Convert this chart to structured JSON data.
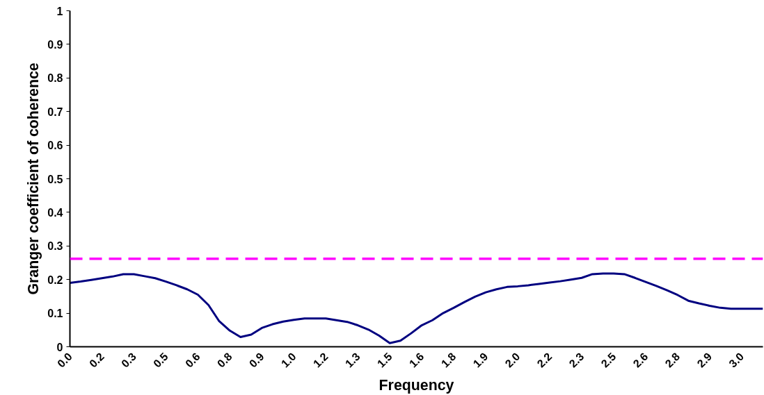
{
  "chart_data": {
    "type": "line",
    "xlabel": "Frequency",
    "ylabel": "Granger coefficient of coherence",
    "categories": [
      "0.0",
      null,
      null,
      "0.2",
      null,
      null,
      "0.3",
      null,
      null,
      "0.5",
      null,
      null,
      "0.6",
      null,
      null,
      "0.8",
      null,
      null,
      "0.9",
      null,
      null,
      "1.0",
      null,
      null,
      "1.2",
      null,
      null,
      "1.3",
      null,
      null,
      "1.5",
      null,
      null,
      "1.6",
      null,
      null,
      "1.8",
      null,
      null,
      "1.9",
      null,
      null,
      "2.0",
      null,
      null,
      "2.2",
      null,
      null,
      "2.3",
      null,
      null,
      "2.5",
      null,
      null,
      "2.6",
      null,
      null,
      "2.8",
      null,
      null,
      "2.9",
      null,
      null,
      "3.0",
      null,
      null
    ],
    "series": [
      {
        "color": "#000080",
        "values": [
          0.19,
          0.194,
          0.199,
          0.204,
          0.209,
          0.216,
          0.216,
          0.21,
          0.204,
          0.194,
          0.183,
          0.171,
          0.155,
          0.124,
          0.076,
          0.048,
          0.029,
          0.036,
          0.056,
          0.067,
          0.075,
          0.08,
          0.084,
          0.084,
          0.084,
          0.079,
          0.074,
          0.064,
          0.051,
          0.033,
          0.011,
          0.018,
          0.04,
          0.064,
          0.079,
          0.1,
          0.116,
          0.133,
          0.149,
          0.162,
          0.171,
          0.178,
          0.18,
          0.183,
          0.187,
          0.191,
          0.195,
          0.2,
          0.205,
          0.216,
          0.218,
          0.218,
          0.216,
          0.205,
          0.193,
          0.181,
          0.168,
          0.154,
          0.137,
          0.129,
          0.122,
          0.116,
          0.113,
          0.113,
          0.113,
          0.113
        ]
      }
    ],
    "ylim": [
      0,
      1
    ],
    "yticks": [
      0,
      0.1,
      0.2,
      0.3,
      0.4,
      0.5,
      0.6,
      0.7,
      0.8,
      0.9,
      1
    ],
    "ref_lines": [
      {
        "axis": "y",
        "value": 0.262,
        "color": "#ff00ff",
        "line_style": "dashed"
      }
    ],
    "grid": false,
    "marker": "none",
    "line_style": "solid"
  }
}
